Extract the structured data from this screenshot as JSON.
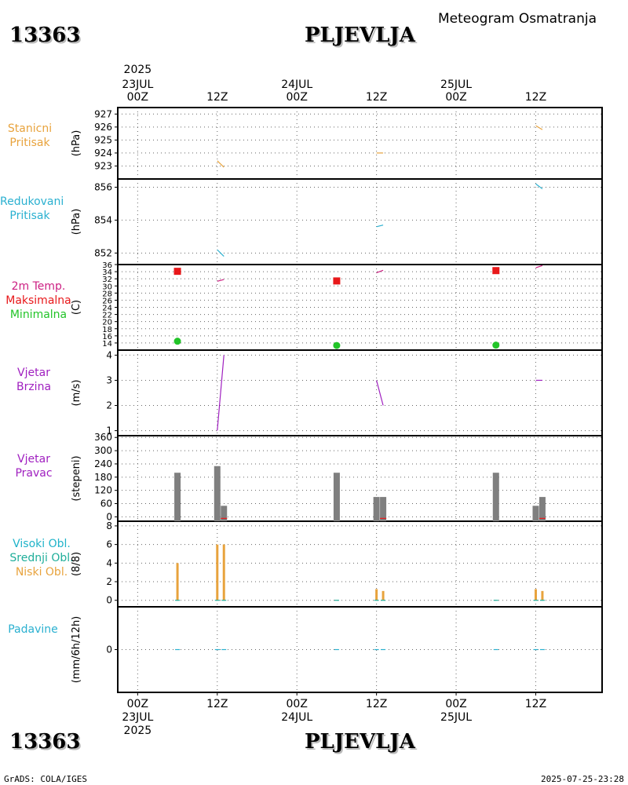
{
  "header": {
    "station_id": "13363",
    "station_name": "PLJEVLJA",
    "meteogram_title": "Meteogram Osmatranja"
  },
  "footer": {
    "station_id": "13363",
    "station_name": "PLJEVLJA",
    "grads_label": "GrADS: COLA/IGES",
    "timestamp": "2025-07-25-23:28"
  },
  "time_axis": {
    "top_year": "2025",
    "ticks": [
      {
        "hour": 0,
        "top": [
          "23JUL",
          "00Z"
        ],
        "bottom": [
          "00Z",
          "23JUL",
          "2025"
        ]
      },
      {
        "hour": 12,
        "top": [
          "12Z"
        ],
        "bottom": [
          "12Z"
        ]
      },
      {
        "hour": 24,
        "top": [
          "24JUL",
          "00Z"
        ],
        "bottom": [
          "00Z",
          "24JUL"
        ]
      },
      {
        "hour": 36,
        "top": [
          "12Z"
        ],
        "bottom": [
          "12Z"
        ]
      },
      {
        "hour": 48,
        "top": [
          "25JUL",
          "00Z"
        ],
        "bottom": [
          "00Z",
          "25JUL"
        ]
      },
      {
        "hour": 60,
        "top": [
          "12Z"
        ],
        "bottom": [
          "12Z"
        ]
      }
    ],
    "range_hours": [
      -3,
      70
    ]
  },
  "panels": {
    "station_pressure": {
      "labels": [
        "Stanicni",
        "Pritisak"
      ],
      "unit": "(hPa)",
      "color": "#e8a33d",
      "ylim": [
        922,
        927.5
      ],
      "ticks": [
        "927",
        "926",
        "925",
        "924",
        "923"
      ]
    },
    "reduced_pressure": {
      "labels": [
        "Redukovani",
        "Pritisak"
      ],
      "unit": "(hPa)",
      "color": "#2ab0d0",
      "ylim": [
        851.3,
        856.5
      ],
      "ticks": [
        "856",
        "854",
        "852"
      ]
    },
    "temperature": {
      "labels": [
        "2m Temp.",
        "Maksimalna",
        "Minimalna"
      ],
      "label_colors": [
        "#cc1f82",
        "#e8181a",
        "#22c428"
      ],
      "unit": "(C)",
      "ylim": [
        12,
        36
      ],
      "ticks": [
        "36",
        "34",
        "32",
        "30",
        "28",
        "26",
        "24",
        "22",
        "20",
        "18",
        "16",
        "14"
      ]
    },
    "wind_speed": {
      "labels": [
        "Vjetar",
        "Brzina"
      ],
      "unit": "(m/s)",
      "color": "#a020c0",
      "ylim": [
        0.8,
        4.2
      ],
      "ticks": [
        "4",
        "3",
        "2",
        "1"
      ]
    },
    "wind_direction": {
      "labels": [
        "Vjetar",
        "Pravac"
      ],
      "unit": "(stepeni)",
      "color": "#a020c0",
      "ylim": [
        -20,
        368
      ],
      "ticks": [
        "360",
        "300",
        "240",
        "180",
        "120",
        "60",
        "0"
      ]
    },
    "clouds": {
      "labels": [
        "Visoki Obl.",
        "Srednji Obl.",
        "Niski Obl."
      ],
      "label_colors": [
        "#1fb3c9",
        "#1fae9a",
        "#e8a33d"
      ],
      "unit": "(8/8)",
      "ylim": [
        -0.7,
        8.5
      ],
      "ticks": [
        "8",
        "6",
        "4",
        "2",
        "0"
      ]
    },
    "precipitation": {
      "labels": [
        "Padavine"
      ],
      "unit": "(mm/6h/12h)",
      "color": "#2ab0d0",
      "ticks": [
        "0"
      ]
    }
  },
  "chart_data": [
    {
      "type": "line",
      "title": "Stanicni Pritisak",
      "ylabel": "(hPa)",
      "ylim": [
        922,
        927.5
      ],
      "series": [
        {
          "name": "Stanicni Pritisak",
          "segments": [
            [
              [
                12,
                923.4
              ],
              [
                13,
                922.9
              ]
            ],
            [
              [
                36,
                924.0
              ],
              [
                37,
                924.0
              ]
            ],
            [
              [
                60,
                926.1
              ],
              [
                61,
                925.8
              ]
            ]
          ]
        }
      ]
    },
    {
      "type": "line",
      "title": "Redukovani Pritisak",
      "ylabel": "(hPa)",
      "ylim": [
        851.3,
        856.5
      ],
      "series": [
        {
          "name": "Redukovani Pritisak",
          "segments": [
            [
              [
                12,
                852.2
              ],
              [
                13,
                851.8
              ]
            ],
            [
              [
                36,
                853.6
              ],
              [
                37,
                853.7
              ]
            ],
            [
              [
                60,
                856.2
              ],
              [
                61,
                855.9
              ]
            ]
          ]
        }
      ]
    },
    {
      "type": "scatter",
      "title": "2m Temp. Maksimalna Minimalna",
      "ylabel": "(C)",
      "ylim": [
        12,
        36
      ],
      "series": [
        {
          "name": "2m Temp.",
          "segments": [
            [
              [
                12,
                31.3
              ],
              [
                13,
                31.8
              ]
            ],
            [
              [
                36,
                33.7
              ],
              [
                37,
                34.4
              ]
            ],
            [
              [
                60,
                35.1
              ],
              [
                61,
                35.7
              ]
            ]
          ]
        },
        {
          "name": "Maksimalna",
          "points": [
            [
              6,
              34.1
            ],
            [
              30,
              31.4
            ],
            [
              54,
              34.3
            ]
          ]
        },
        {
          "name": "Minimalna",
          "points": [
            [
              6,
              14.5
            ],
            [
              30,
              13.3
            ],
            [
              54,
              13.4
            ]
          ]
        }
      ]
    },
    {
      "type": "line",
      "title": "Vjetar Brzina",
      "ylabel": "(m/s)",
      "ylim": [
        0.8,
        4.2
      ],
      "series": [
        {
          "name": "Vjetar Brzina",
          "segments": [
            [
              [
                12,
                1.0
              ],
              [
                13,
                4.0
              ]
            ],
            [
              [
                36,
                3.0
              ],
              [
                37,
                2.0
              ]
            ],
            [
              [
                60,
                3.0
              ],
              [
                61,
                3.0
              ]
            ]
          ]
        }
      ]
    },
    {
      "type": "bar",
      "title": "Vjetar Pravac",
      "ylabel": "(stepeni)",
      "ylim": [
        -20,
        368
      ],
      "series": [
        {
          "name": "Vjetar Pravac",
          "x": [
            6,
            12,
            13,
            30,
            36,
            37,
            54,
            60,
            61
          ],
          "values": [
            200,
            230,
            50,
            200,
            90,
            90,
            200,
            50,
            90
          ]
        }
      ]
    },
    {
      "type": "bar",
      "title": "Oblacnost",
      "ylabel": "(8/8)",
      "ylim": [
        -0.7,
        8.5
      ],
      "series": [
        {
          "name": "Niski Obl.",
          "x": [
            6,
            12,
            13,
            30,
            36,
            37,
            54,
            60,
            61
          ],
          "values": [
            4,
            6,
            6,
            0,
            1.2,
            1,
            0,
            1.2,
            1
          ]
        }
      ]
    },
    {
      "type": "line",
      "title": "Padavine",
      "ylabel": "(mm/6h/12h)",
      "series": [
        {
          "name": "Padavine",
          "x": [
            6,
            12,
            13,
            30,
            36,
            37,
            54,
            60,
            61
          ],
          "values": [
            0,
            0,
            0,
            0,
            0,
            0,
            0,
            0,
            0
          ]
        }
      ]
    }
  ]
}
